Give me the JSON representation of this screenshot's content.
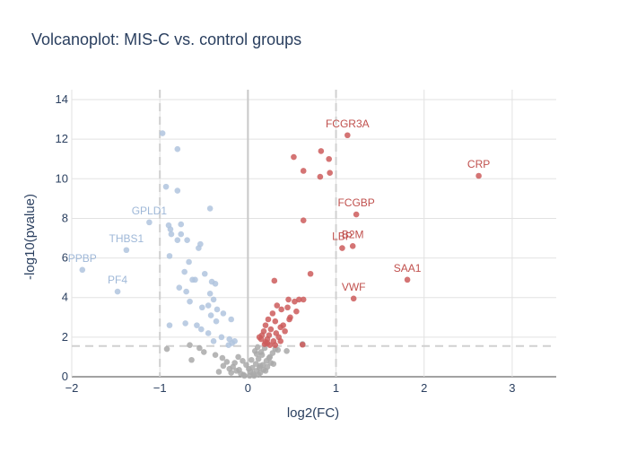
{
  "chart_data": {
    "type": "scatter",
    "title": "Volcanoplot: MIS-C vs. control groups",
    "xlabel": "log2(FC)",
    "ylabel": "-log10(pvalue)",
    "xlim": [
      -2,
      3.5
    ],
    "ylim": [
      0,
      14.5
    ],
    "x_ticks": [
      -2,
      -1,
      0,
      1,
      2,
      3
    ],
    "y_ticks": [
      0,
      2,
      4,
      6,
      8,
      10,
      12,
      14
    ],
    "x_tick_labels": [
      "−2",
      "−1",
      "0",
      "1",
      "2",
      "3"
    ],
    "y_tick_labels": [
      "0",
      "2",
      "4",
      "6",
      "8",
      "10",
      "12",
      "14"
    ],
    "grid": true,
    "thresholds": {
      "log2fc": [
        -1,
        1
      ],
      "neg_log10_p": 1.55
    },
    "colors": {
      "up": "#cd5c5c",
      "down": "#b0c4de",
      "ns": "#a9a9a9",
      "threshold": "#d0d0d0",
      "grid": "#e2e2e2"
    },
    "series": [
      {
        "group": "down",
        "x": [
          -0.97,
          -0.93,
          -0.8,
          -0.8,
          -0.76,
          -0.43,
          -1.12,
          -0.9,
          -0.88,
          -0.87,
          -0.76,
          -0.8,
          -0.69,
          -0.56,
          -0.54,
          -0.67,
          -0.89,
          -0.72,
          -0.63,
          -0.49,
          -0.41,
          -0.37,
          -0.6,
          -0.78,
          -0.7,
          -0.43,
          -0.39,
          -0.66,
          -0.52,
          -0.45,
          -0.35,
          -0.28,
          -0.19,
          -0.42,
          -0.36,
          -0.58,
          -0.71,
          -0.89,
          -0.53,
          -0.45,
          -0.3,
          -0.21,
          -0.15,
          -0.39,
          -0.18,
          -0.22,
          -1.38,
          -1.88,
          -1.48
        ],
        "y": [
          12.3,
          9.6,
          11.5,
          9.4,
          7.7,
          8.5,
          7.8,
          7.65,
          7.45,
          7.2,
          7.2,
          6.9,
          6.9,
          6.5,
          6.7,
          5.8,
          6.1,
          5.3,
          4.9,
          5.2,
          4.8,
          4.7,
          4.9,
          4.5,
          4.3,
          4.2,
          3.9,
          3.8,
          3.5,
          3.6,
          3.4,
          3.2,
          2.9,
          3.1,
          2.8,
          2.6,
          2.7,
          2.6,
          2.4,
          2.2,
          2.0,
          1.9,
          1.8,
          1.8,
          1.7,
          1.6,
          6.4,
          5.4,
          4.3
        ],
        "labels": [
          {
            "text": "GPLD1",
            "x": -1.12,
            "y": 7.8
          },
          {
            "text": "THBS1",
            "x": -1.38,
            "y": 6.4
          },
          {
            "text": "PPBP",
            "x": -1.88,
            "y": 5.4
          },
          {
            "text": "PF4",
            "x": -1.48,
            "y": 4.3
          }
        ]
      },
      {
        "group": "up",
        "x": [
          1.13,
          0.52,
          0.83,
          0.92,
          0.63,
          0.82,
          0.93,
          2.62,
          1.23,
          0.63,
          1.19,
          1.07,
          1.81,
          1.2,
          0.71,
          0.58,
          0.3,
          0.46,
          0.53,
          0.63,
          0.33,
          0.38,
          0.45,
          0.28,
          0.48,
          0.55,
          0.23,
          0.31,
          0.4,
          0.47,
          0.2,
          0.26,
          0.37,
          0.42,
          0.18,
          0.24,
          0.32,
          0.35,
          0.16,
          0.22,
          0.29,
          0.13,
          0.2,
          0.25,
          0.37,
          0.15,
          0.22,
          0.31,
          0.19,
          0.62
        ],
        "y": [
          12.2,
          11.1,
          11.4,
          11.0,
          10.4,
          10.1,
          10.3,
          10.15,
          8.2,
          7.9,
          6.6,
          6.5,
          4.9,
          3.95,
          5.2,
          3.9,
          4.85,
          3.9,
          3.8,
          3.9,
          3.6,
          3.4,
          3.5,
          3.2,
          3.0,
          3.3,
          2.9,
          2.8,
          2.6,
          2.9,
          2.6,
          2.4,
          2.5,
          2.3,
          2.3,
          2.1,
          2.2,
          2.0,
          2.1,
          1.9,
          1.8,
          2.0,
          1.75,
          1.6,
          1.8,
          1.9,
          1.7,
          1.6,
          1.65,
          1.62
        ],
        "labels": [
          {
            "text": "FCGR3A",
            "x": 1.13,
            "y": 12.2
          },
          {
            "text": "CRP",
            "x": 2.62,
            "y": 10.15
          },
          {
            "text": "FCGBP",
            "x": 1.23,
            "y": 8.2
          },
          {
            "text": "LBP",
            "x": 1.07,
            "y": 6.5
          },
          {
            "text": "B2M",
            "x": 1.19,
            "y": 6.6
          },
          {
            "text": "SAA1",
            "x": 1.81,
            "y": 4.9
          },
          {
            "text": "VWF",
            "x": 1.2,
            "y": 3.95
          }
        ]
      },
      {
        "group": "ns",
        "x": [
          -0.92,
          -0.64,
          -0.66,
          -0.29,
          -0.21,
          -0.15,
          -0.33,
          -0.28,
          -0.19,
          -0.1,
          -0.05,
          0.02,
          0.06,
          0.1,
          0.13,
          0.17,
          0.21,
          0.25,
          0.28,
          0.31,
          0.14,
          0.18,
          0.22,
          0.26,
          0.09,
          0.12,
          0.16,
          0.03,
          -0.04,
          -0.08,
          -0.13,
          -0.17,
          -0.24,
          -0.02,
          0.05,
          0.08,
          0.11,
          0.15,
          0.19,
          0.12,
          0.07,
          0.01,
          -0.06,
          -0.11,
          0.24,
          0.29,
          0.34,
          0.04,
          0.1,
          0.14,
          0.2,
          0.62,
          0.44,
          -0.37,
          -0.5,
          -0.55
        ],
        "y": [
          1.4,
          0.85,
          1.6,
          0.95,
          0.4,
          0.7,
          0.25,
          0.55,
          0.2,
          0.35,
          0.1,
          0.05,
          0.15,
          0.3,
          0.45,
          0.6,
          0.8,
          1.0,
          1.2,
          1.4,
          0.2,
          0.35,
          0.5,
          0.7,
          0.65,
          0.9,
          1.1,
          0.25,
          0.05,
          0.15,
          0.3,
          0.5,
          0.75,
          0.6,
          0.45,
          1.3,
          1.5,
          1.25,
          1.45,
          0.1,
          0.05,
          0.4,
          0.8,
          1.0,
          0.95,
          0.65,
          1.35,
          0.85,
          1.15,
          0.55,
          0.3,
          1.65,
          1.3,
          1.1,
          1.25,
          1.45
        ]
      }
    ]
  }
}
